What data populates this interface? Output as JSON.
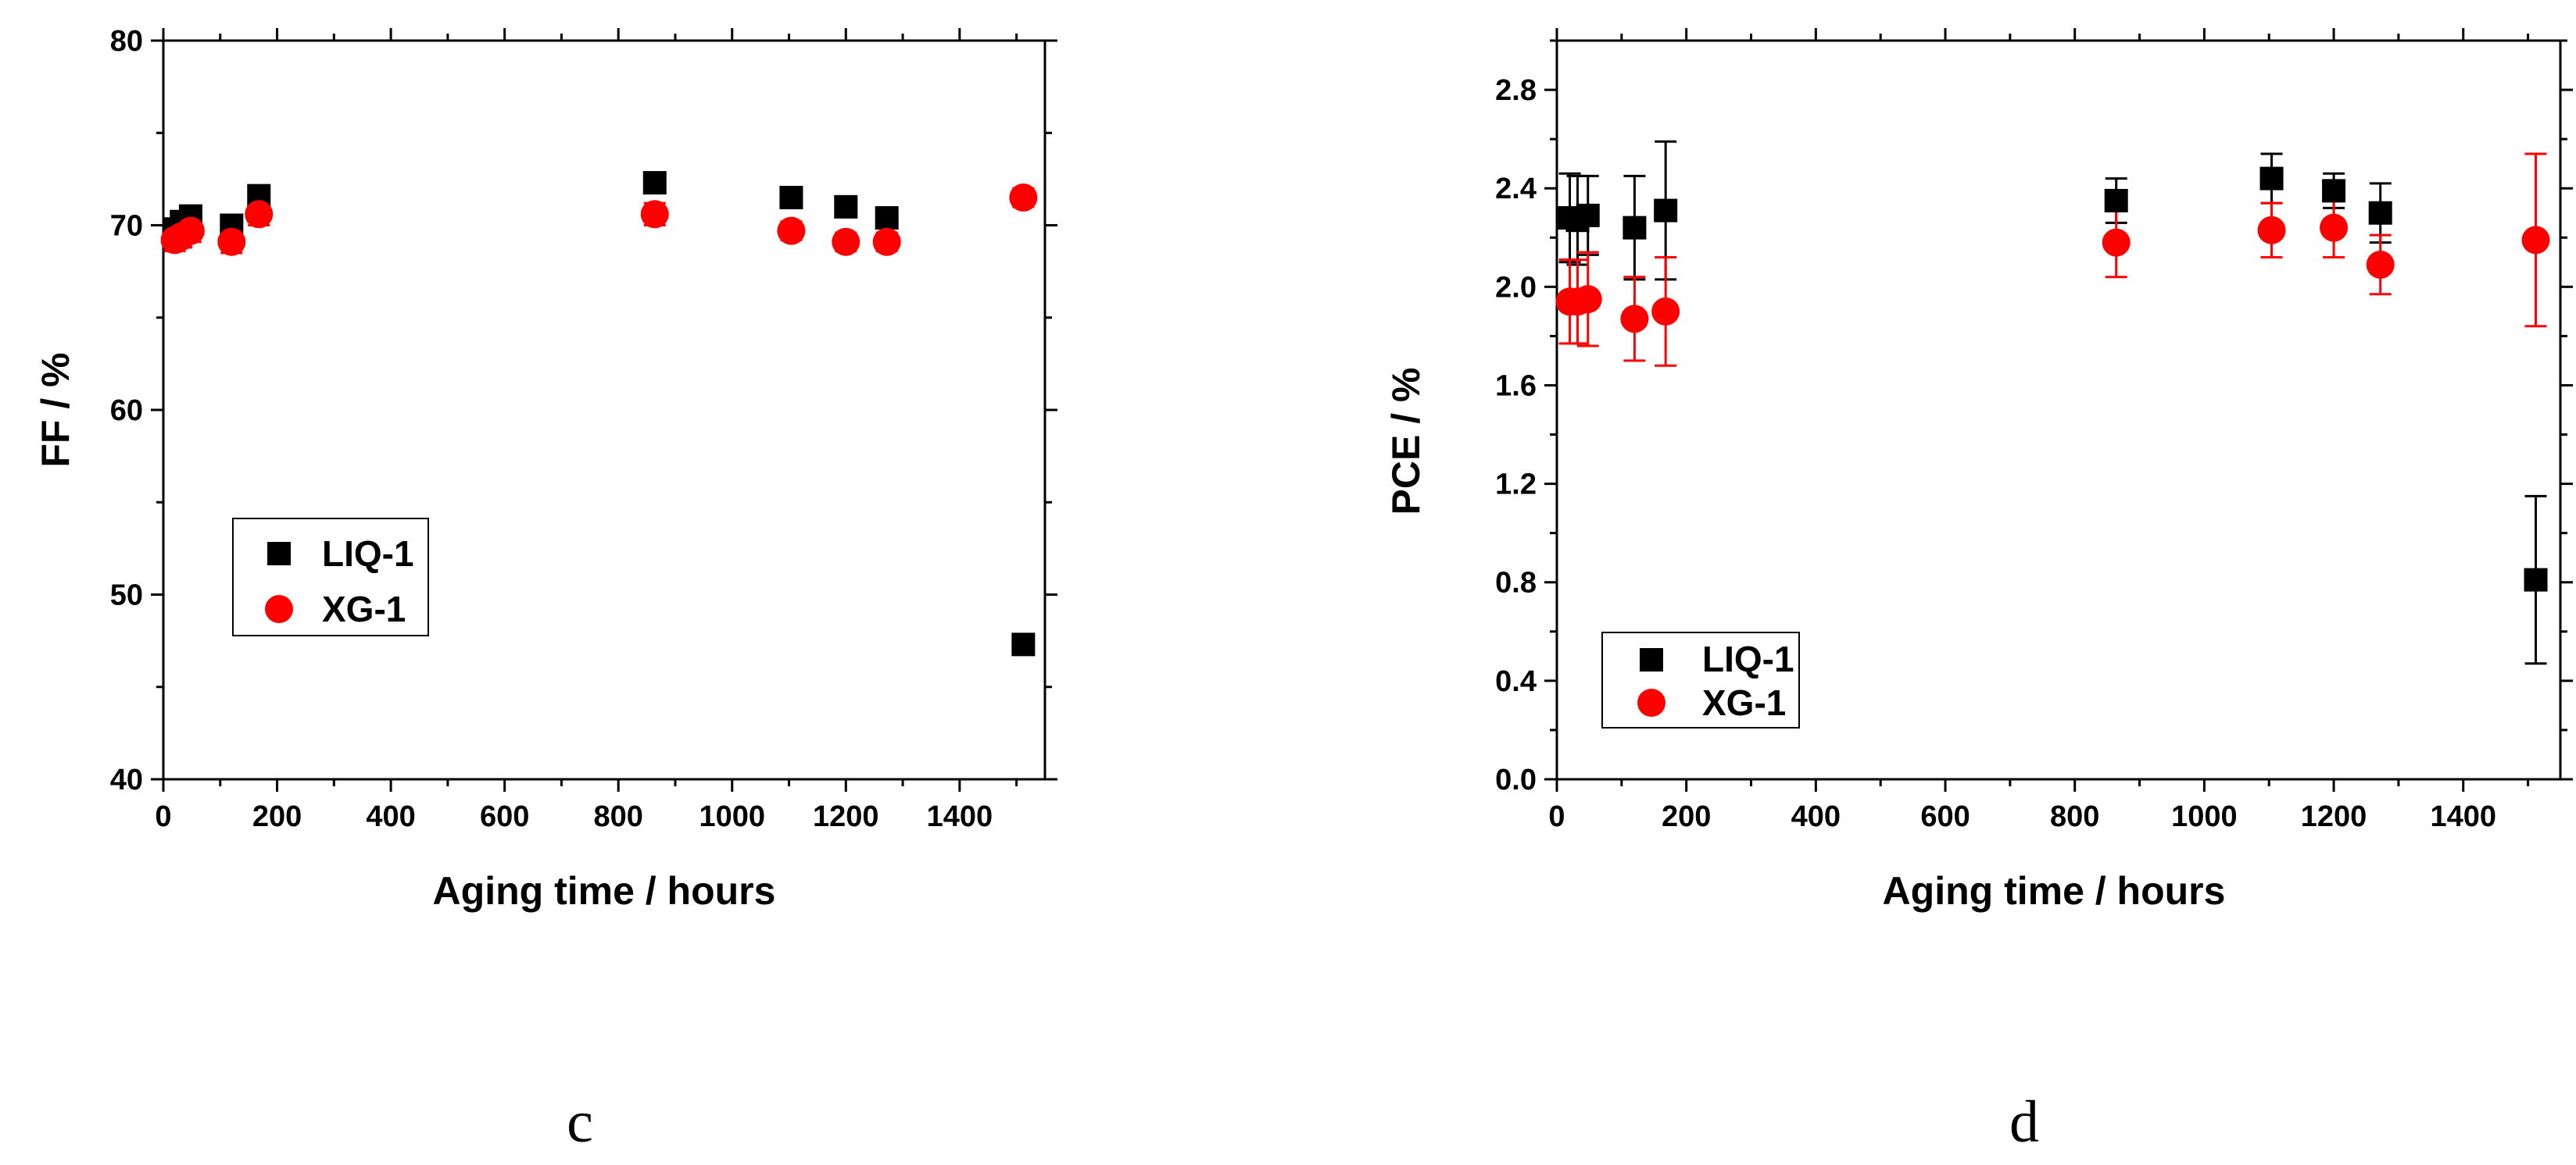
{
  "chart_data": [
    {
      "type": "scatter",
      "panel_label": "c",
      "xlabel": "Aging time / hours",
      "ylabel": "FF / %",
      "xlim": [
        0,
        1550
      ],
      "ylim": [
        40,
        80
      ],
      "xticks": [
        0,
        200,
        400,
        600,
        800,
        1000,
        1200,
        1400
      ],
      "xtick_labels": [
        "0",
        "200",
        "400",
        "600",
        "800",
        "1000",
        "1200",
        "1400"
      ],
      "yticks": [
        40,
        50,
        60,
        70,
        80
      ],
      "ytick_labels": [
        "40",
        "50",
        "60",
        "70",
        "80"
      ],
      "legend_position": "center-left",
      "series": [
        {
          "name": "LIQ-1",
          "marker": "square",
          "color": "#000000",
          "x": [
            20,
            32,
            48,
            120,
            168,
            864,
            1104,
            1200,
            1272,
            1512
          ],
          "y": [
            69.8,
            70.2,
            70.5,
            70.0,
            71.6,
            72.3,
            71.5,
            71.0,
            70.4,
            47.3
          ],
          "err": [
            0.5,
            0.5,
            0.5,
            0.5,
            0.5,
            0.5,
            0.5,
            0.5,
            0.5,
            0.5
          ]
        },
        {
          "name": "XG-1",
          "marker": "circle",
          "color": "#ff0000",
          "x": [
            20,
            32,
            48,
            120,
            168,
            864,
            1104,
            1200,
            1272,
            1512
          ],
          "y": [
            69.2,
            69.4,
            69.7,
            69.1,
            70.6,
            70.6,
            69.7,
            69.1,
            69.1,
            71.5
          ],
          "err": [
            0.6,
            0.6,
            0.6,
            0.6,
            0.6,
            0.6,
            0.5,
            0.5,
            0.5,
            0.5
          ]
        }
      ]
    },
    {
      "type": "scatter",
      "panel_label": "d",
      "xlabel": "Aging time / hours",
      "ylabel": "PCE / %",
      "xlim": [
        0,
        1550
      ],
      "ylim": [
        0,
        3.0
      ],
      "xticks": [
        0,
        200,
        400,
        600,
        800,
        1000,
        1200,
        1400
      ],
      "xtick_labels": [
        "0",
        "200",
        "400",
        "600",
        "800",
        "1000",
        "1200",
        "1400"
      ],
      "yticks": [
        0,
        0.4,
        0.8,
        1.2,
        1.6,
        2.0,
        2.4,
        2.8
      ],
      "ytick_labels": [
        "0.0",
        "0.4",
        "0.8",
        "1.2",
        "1.6",
        "2.0",
        "2.4",
        "2.8"
      ],
      "legend_position": "bottom-left",
      "series": [
        {
          "name": "LIQ-1",
          "marker": "square",
          "color": "#000000",
          "x": [
            20,
            32,
            48,
            120,
            168,
            864,
            1104,
            1200,
            1272,
            1512
          ],
          "y": [
            2.28,
            2.27,
            2.29,
            2.24,
            2.31,
            2.35,
            2.44,
            2.39,
            2.3,
            0.81
          ],
          "err": [
            0.18,
            0.18,
            0.16,
            0.21,
            0.28,
            0.09,
            0.1,
            0.07,
            0.12,
            0.34
          ]
        },
        {
          "name": "XG-1",
          "marker": "circle",
          "color": "#ff0000",
          "x": [
            20,
            32,
            48,
            120,
            168,
            864,
            1104,
            1200,
            1272,
            1512
          ],
          "y": [
            1.94,
            1.94,
            1.95,
            1.87,
            1.9,
            2.18,
            2.23,
            2.24,
            2.09,
            2.19
          ],
          "err": [
            0.17,
            0.17,
            0.19,
            0.17,
            0.22,
            0.14,
            0.11,
            0.12,
            0.12,
            0.35
          ]
        }
      ]
    }
  ]
}
